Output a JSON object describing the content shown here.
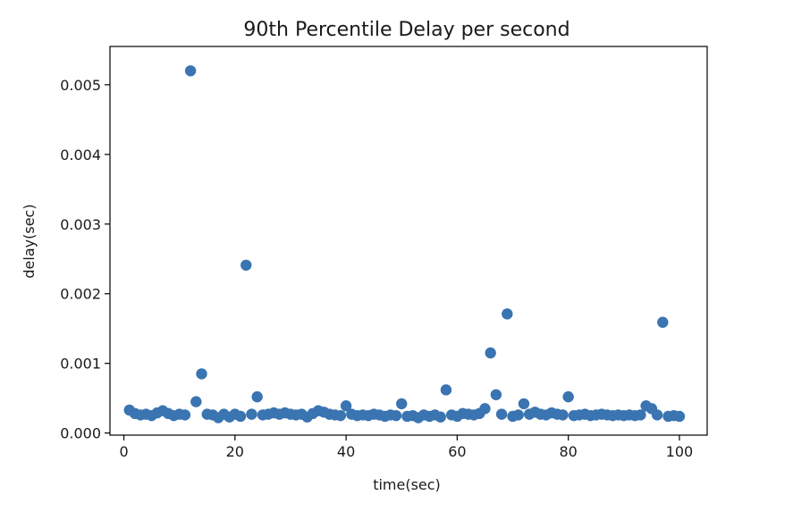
{
  "chart_data": {
    "type": "scatter",
    "title": "90th Percentile Delay per second",
    "xlabel": "time(sec)",
    "ylabel": "delay(sec)",
    "xlim": [
      -2.5,
      105
    ],
    "ylim": [
      -3e-05,
      0.00555
    ],
    "xticks": [
      0,
      20,
      40,
      60,
      80,
      100
    ],
    "xtick_labels": [
      "0",
      "20",
      "40",
      "60",
      "80",
      "100"
    ],
    "yticks": [
      0,
      0.001,
      0.002,
      0.003,
      0.004,
      0.005
    ],
    "ytick_labels": [
      "0.000",
      "0.001",
      "0.002",
      "0.003",
      "0.004",
      "0.005"
    ],
    "grid": false,
    "marker_color": "#3a74b1",
    "series": [
      {
        "x": [
          1,
          2,
          3,
          4,
          5,
          6,
          7,
          8,
          9,
          10,
          11,
          12,
          13,
          14,
          15,
          16,
          17,
          18,
          19,
          20,
          21,
          22,
          23,
          24,
          25,
          26,
          27,
          28,
          29,
          30,
          31,
          32,
          33,
          34,
          35,
          36,
          37,
          38,
          39,
          40,
          41,
          42,
          43,
          44,
          45,
          46,
          47,
          48,
          49,
          50,
          51,
          52,
          53,
          54,
          55,
          56,
          57,
          58,
          59,
          60,
          61,
          62,
          63,
          64,
          65,
          66,
          67,
          68,
          69,
          70,
          71,
          72,
          73,
          74,
          75,
          76,
          77,
          78,
          79,
          80,
          81,
          82,
          83,
          84,
          85,
          86,
          87,
          88,
          89,
          90,
          91,
          92,
          93,
          94,
          95,
          96,
          97,
          98,
          99,
          100
        ],
        "y": [
          0.00033,
          0.00028,
          0.00026,
          0.00027,
          0.00025,
          0.00029,
          0.00032,
          0.00028,
          0.00025,
          0.00027,
          0.00026,
          0.0052,
          0.00045,
          0.00085,
          0.00027,
          0.00026,
          0.00022,
          0.00027,
          0.00023,
          0.00027,
          0.00024,
          0.00241,
          0.00027,
          0.00052,
          0.00026,
          0.00027,
          0.00029,
          0.00027,
          0.00029,
          0.00027,
          0.00026,
          0.00027,
          0.00023,
          0.00028,
          0.00032,
          0.0003,
          0.00027,
          0.00026,
          0.00025,
          0.00039,
          0.00027,
          0.00025,
          0.00026,
          0.00025,
          0.00027,
          0.00026,
          0.00024,
          0.00026,
          0.00025,
          0.00042,
          0.00024,
          0.00025,
          0.00022,
          0.00026,
          0.00024,
          0.00026,
          0.00023,
          0.00062,
          0.00026,
          0.00024,
          0.00028,
          0.00027,
          0.00026,
          0.00028,
          0.00035,
          0.00115,
          0.00055,
          0.00027,
          0.00171,
          0.00024,
          0.00026,
          0.00042,
          0.00027,
          0.0003,
          0.00027,
          0.00026,
          0.00029,
          0.00027,
          0.00026,
          0.00052,
          0.00025,
          0.00026,
          0.00027,
          0.00025,
          0.00026,
          0.00027,
          0.00026,
          0.00025,
          0.00026,
          0.00025,
          0.00026,
          0.00025,
          0.00026,
          0.00039,
          0.00035,
          0.00026,
          0.00159,
          0.00024,
          0.00025,
          0.00024
        ]
      }
    ]
  }
}
